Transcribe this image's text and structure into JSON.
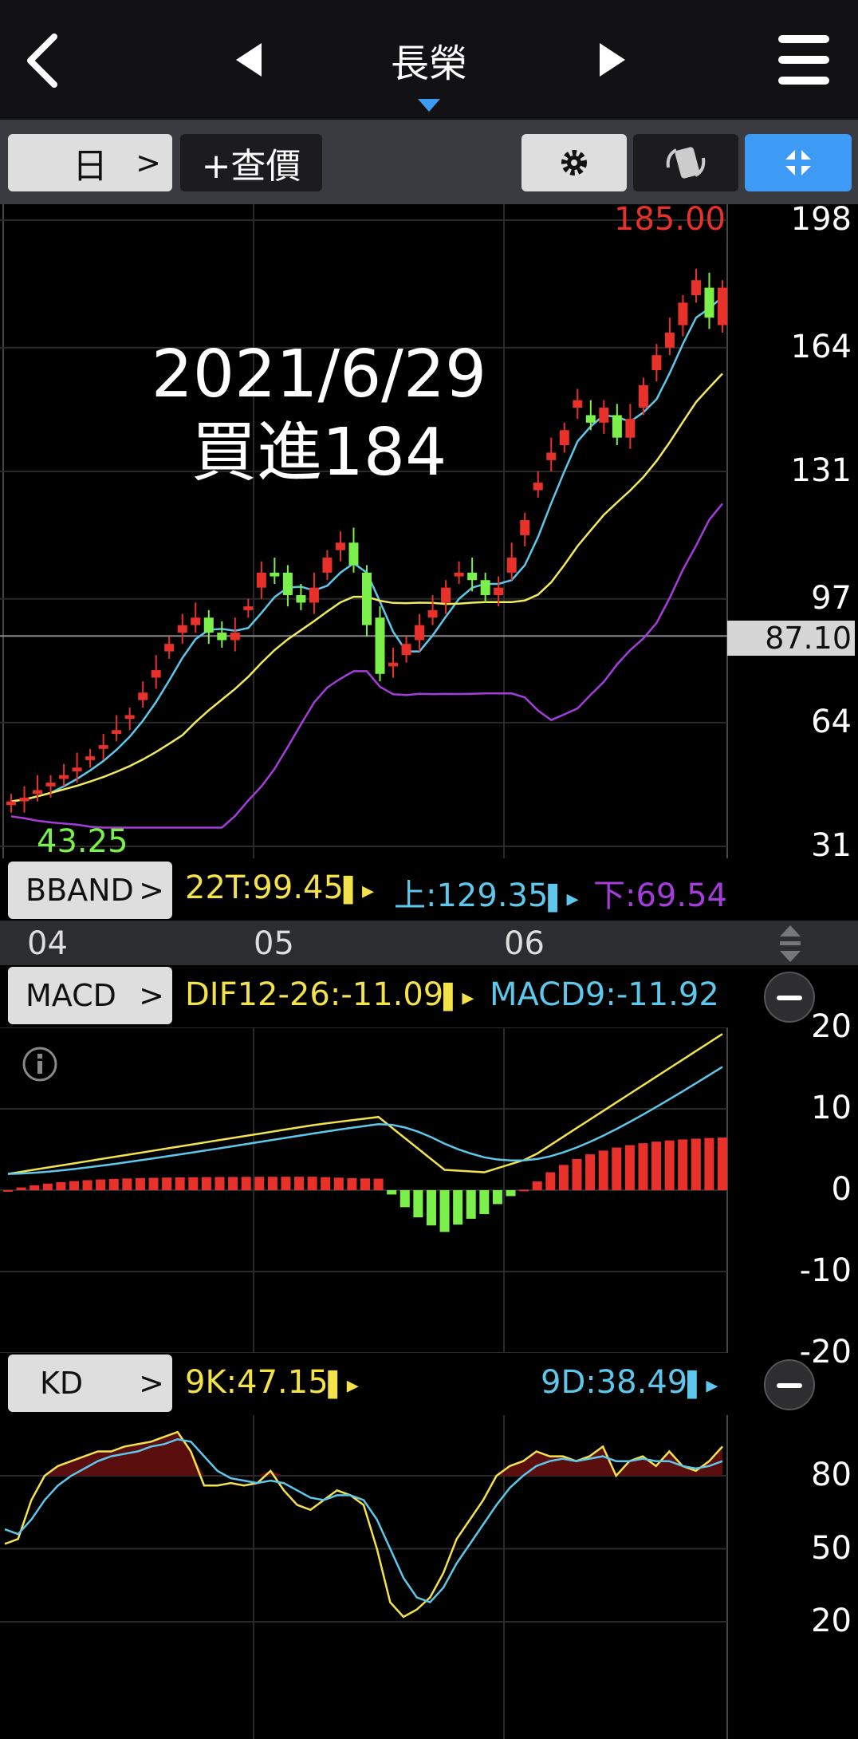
{
  "header": {
    "title": "長榮"
  },
  "toolbar": {
    "period_label": "日",
    "quote_label": "+查價"
  },
  "main_chart": {
    "y_ticks": [
      "198",
      "164",
      "131",
      "97",
      "64",
      "31"
    ],
    "max_label": "185.00",
    "min_label": "43.25",
    "cursor_price": "87.10",
    "annotation_date": "2021/6/29",
    "annotation_text": "買進184"
  },
  "bband": {
    "label": "BBAND",
    "mid": "22T:99.45",
    "upper": "上:129.35",
    "lower": "下:69.54"
  },
  "x_axis": {
    "ticks": [
      "04",
      "05",
      "06"
    ]
  },
  "macd": {
    "label": "MACD",
    "dif": "DIF12-26:-11.09",
    "signal": "MACD9:-11.92",
    "y_ticks": [
      "20",
      "10",
      "0",
      "-10",
      "-20"
    ]
  },
  "kd": {
    "label": "KD",
    "k": "9K:47.15",
    "d": "9D:38.49",
    "y_ticks": [
      "80",
      "50",
      "20"
    ]
  },
  "colors": {
    "up": "#e8312a",
    "down": "#7cf04a",
    "ma_short": "#5ec8ec",
    "ma_long": "#f2ea5a",
    "bband_lower": "#a53ddc",
    "k": "#f4e24a",
    "d": "#5ec8ec",
    "accent_blue": "#3d9bf5"
  },
  "icons": [
    "back-chevron-icon",
    "prev-arrow-icon",
    "next-arrow-icon",
    "hamburger-menu-icon",
    "gear-icon",
    "rotate-icon",
    "collapse-icon",
    "info-icon",
    "minus-icon",
    "resize-handle-icon"
  ],
  "chart_data": [
    {
      "type": "candlestick",
      "y_range": [
        31,
        198
      ],
      "x_ticks": [
        "04",
        "05",
        "06"
      ],
      "annotations": [
        "185.00",
        "43.25",
        "87.10",
        "2021/6/29",
        "買進184"
      ],
      "series": [
        {
          "name": "22T:99.45"
        },
        {
          "name": "上:129.35"
        },
        {
          "name": "下:69.54"
        }
      ],
      "candles_close": [
        43,
        44,
        46,
        48,
        50,
        52,
        55,
        58,
        62,
        66,
        72,
        78,
        85,
        90,
        92,
        88,
        86,
        88,
        95,
        104,
        103,
        98,
        96,
        100,
        108,
        112,
        106,
        90,
        77,
        80,
        85,
        90,
        94,
        100,
        104,
        102,
        98,
        100,
        108,
        118,
        128,
        136,
        142,
        150,
        144,
        148,
        140,
        145,
        154,
        162,
        168,
        176,
        182,
        172,
        180
      ],
      "candles_open": [
        42,
        43,
        45,
        47,
        49,
        51,
        54,
        57,
        61,
        65,
        70,
        76,
        83,
        88,
        90,
        92,
        88,
        86,
        94,
        100,
        104,
        104,
        98,
        96,
        104,
        110,
        112,
        104,
        92,
        79,
        82,
        86,
        92,
        96,
        103,
        104,
        102,
        98,
        104,
        114,
        126,
        134,
        138,
        148,
        146,
        144,
        146,
        140,
        148,
        158,
        164,
        170,
        178,
        180,
        170
      ]
    },
    {
      "type": "line",
      "y_range": [
        -20,
        20
      ],
      "series": [
        {
          "name": "DIF12-26:-11.09"
        },
        {
          "name": "MACD9:-11.92"
        }
      ]
    },
    {
      "type": "line",
      "y_range": [
        20,
        80
      ],
      "series": [
        {
          "name": "9K:47.15"
        },
        {
          "name": "9D:38.49"
        }
      ]
    }
  ]
}
